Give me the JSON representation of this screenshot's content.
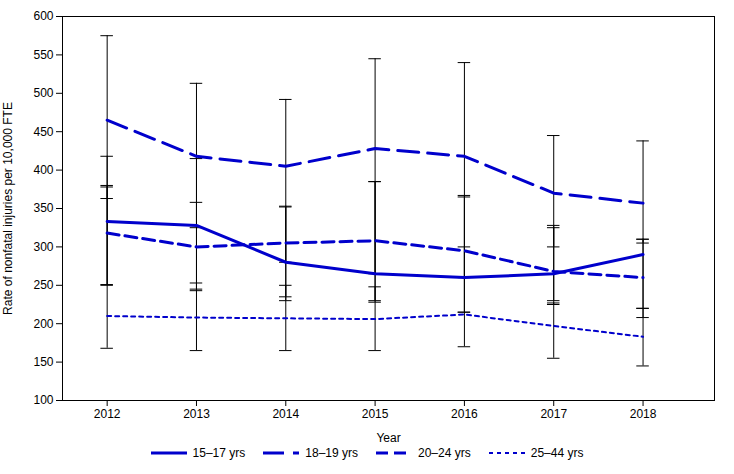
{
  "chart_data": {
    "type": "line",
    "xlabel": "Year",
    "ylabel": "Rate of nonfatal injuries per 10,000 FTE",
    "x": [
      2012,
      2013,
      2014,
      2015,
      2016,
      2017,
      2018
    ],
    "xlim": [
      2011.5,
      2018.8
    ],
    "xticks": [
      2012,
      2013,
      2014,
      2015,
      2016,
      2017,
      2018
    ],
    "ylim": [
      100,
      600
    ],
    "yticks": [
      100,
      150,
      200,
      250,
      300,
      350,
      400,
      450,
      500,
      550,
      600
    ],
    "grid": false,
    "legend": "bottom",
    "series": [
      {
        "name": "15–17 yrs",
        "color": "#0000cc",
        "line_style": "solid",
        "values": [
          333,
          328,
          280,
          265,
          260,
          265,
          290
        ],
        "ci_lower": [
          250,
          245,
          230,
          228,
          215,
          225,
          220
        ],
        "ci_upper": [
          418,
          415,
          353,
          385,
          365,
          328,
          310
        ]
      },
      {
        "name": "18–19 yrs",
        "color": "#0000cc",
        "line_style": "dashed",
        "values": [
          465,
          418,
          405,
          428,
          418,
          370,
          357
        ],
        "ci_lower": [
          363,
          325,
          280,
          265,
          260,
          300,
          305
        ],
        "ci_upper": [
          575,
          513,
          492,
          545,
          540,
          445,
          438
        ]
      },
      {
        "name": "20–24 yrs",
        "color": "#0000cc",
        "line_style": "dotted_large",
        "values": [
          318,
          300,
          305,
          308,
          295,
          268,
          260
        ],
        "ci_lower": [
          251,
          243,
          235,
          230,
          215,
          230,
          208
        ],
        "ci_upper": [
          380,
          358,
          352,
          385,
          367,
          325,
          310
        ]
      },
      {
        "name": "25–44 yrs",
        "color": "#0000cc",
        "line_style": "dotted_small",
        "values": [
          210,
          208,
          207,
          206,
          212,
          197,
          183
        ],
        "ci_lower": [
          168,
          165,
          165,
          165,
          170,
          155,
          145
        ],
        "ci_upper": [
          378,
          253,
          250,
          248,
          300,
          227,
          220
        ]
      }
    ]
  }
}
